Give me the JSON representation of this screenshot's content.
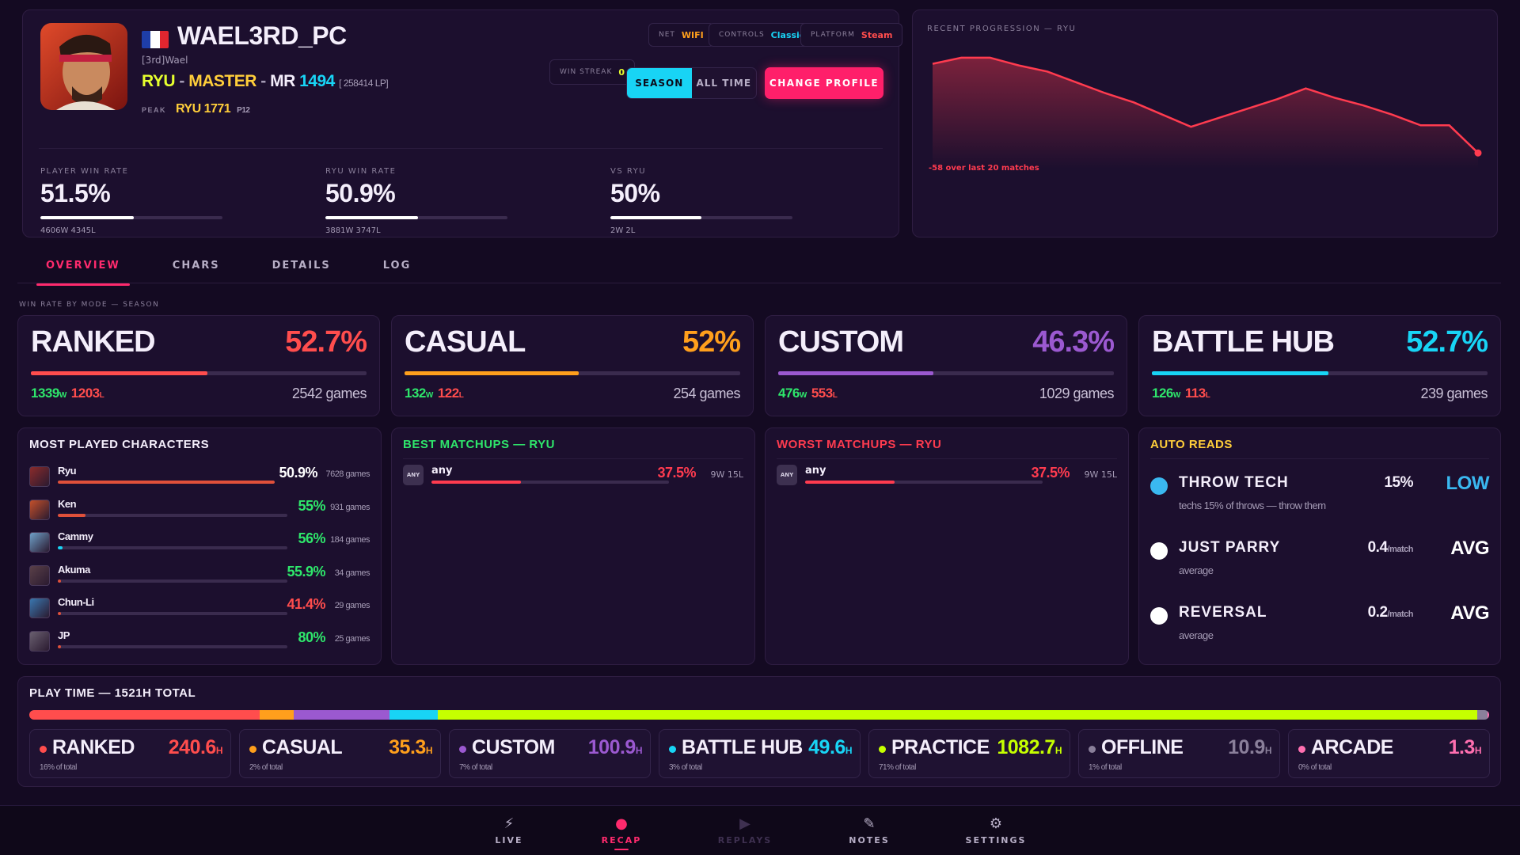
{
  "profile": {
    "name": "WAEL3RD_PC",
    "tag": "[3rd]Wael",
    "character": "RYU",
    "league": "MASTER",
    "mr_label": "MR",
    "mr": "1494",
    "lp": "[ 258414 LP]",
    "peak_label": "PEAK",
    "peak_value": "RYU 1771",
    "peak_sub": "P12"
  },
  "chips": {
    "net_label": "NET",
    "net_value": "WIFI",
    "controls_label": "CONTROLS",
    "controls_value": "Classic",
    "platform_label": "PLATFORM",
    "platform_value": "Steam",
    "streak_label": "WIN STREAK",
    "streak_value": "0"
  },
  "segment": {
    "season": "SEASON",
    "alltime": "ALL TIME"
  },
  "change_profile": "CHANGE PROFILE",
  "stats": [
    {
      "label": "PLAYER WIN RATE",
      "value": "51.5%",
      "fill": 0.515,
      "record": "4606W 4345L"
    },
    {
      "label": "RYU WIN RATE",
      "value": "50.9%",
      "fill": 0.509,
      "record": "3881W 3747L"
    },
    {
      "label": "VS RYU",
      "value": "50%",
      "fill": 0.5,
      "record": "2W 2L"
    }
  ],
  "progression": {
    "title": "RECENT PROGRESSION — Ryu",
    "delta": "-58 over last 20 matches"
  },
  "tabs": [
    "OVERVIEW",
    "CHARS",
    "DETAILS",
    "LOG"
  ],
  "modes_title": "WIN RATE BY MODE — SEASON",
  "modes": [
    {
      "name": "RANKED",
      "rate": "52.7%",
      "fill": 0.527,
      "wins": "1339",
      "losses": "1203",
      "games": "2542 games",
      "color": "#ff4d4d"
    },
    {
      "name": "CASUAL",
      "rate": "52%",
      "fill": 0.52,
      "wins": "132",
      "losses": "122",
      "games": "254 games",
      "color": "#ff9f1c"
    },
    {
      "name": "CUSTOM",
      "rate": "46.3%",
      "fill": 0.463,
      "wins": "476",
      "losses": "553",
      "games": "1029 games",
      "color": "#9b59d0"
    },
    {
      "name": "BATTLE HUB",
      "rate": "52.7%",
      "fill": 0.527,
      "wins": "126",
      "losses": "113",
      "games": "239 games",
      "color": "#18d4f5"
    }
  ],
  "w_suffix": "W",
  "l_suffix": "L",
  "most_played": {
    "title": "MOST PLAYED CHARACTERS",
    "rows": [
      {
        "name": "Ryu",
        "rate": "50.9%",
        "games": "7628 games",
        "fill": 1.0,
        "rate_color": "#ffffff",
        "bar": "#e0503a",
        "icon": "#8b2b2b"
      },
      {
        "name": "Ken",
        "rate": "55%",
        "games": "931 games",
        "fill": 0.12,
        "rate_color": "#2ee66b",
        "bar": "#e0503a",
        "icon": "#c4502a"
      },
      {
        "name": "Cammy",
        "rate": "56%",
        "games": "184 games",
        "fill": 0.02,
        "rate_color": "#2ee66b",
        "bar": "#18d4f5",
        "icon": "#6fa0c8"
      },
      {
        "name": "Akuma",
        "rate": "55.9%",
        "games": "34 games",
        "fill": 0.0,
        "rate_color": "#2ee66b",
        "bar": "#e0503a",
        "icon": "#5a4048"
      },
      {
        "name": "Chun-Li",
        "rate": "41.4%",
        "games": "29 games",
        "fill": 0.0,
        "rate_color": "#ff4d4d",
        "bar": "#e0503a",
        "icon": "#3a78b0"
      },
      {
        "name": "JP",
        "rate": "80%",
        "games": "25 games",
        "fill": 0.0,
        "rate_color": "#2ee66b",
        "bar": "#e0503a",
        "icon": "#6a6070"
      }
    ]
  },
  "best": {
    "title": "BEST MATCHUPS — RYU",
    "badge": "ANY",
    "name": "any",
    "rate": "37.5%",
    "fill": 0.375,
    "wl": "9W 15L"
  },
  "worst": {
    "title": "WORST MATCHUPS — RYU",
    "badge": "ANY",
    "name": "any",
    "rate": "37.5%",
    "fill": 0.375,
    "wl": "9W 15L"
  },
  "auto_reads": {
    "title": "AUTO READS",
    "items": [
      {
        "name": "THROW TECH",
        "value": "15%",
        "unit": "",
        "level": "LOW",
        "level_color": "#3ab8f0",
        "dot": "#3ab8f0",
        "desc": "techs 15% of throws — throw them"
      },
      {
        "name": "JUST PARRY",
        "value": "0.4",
        "unit": "/match",
        "level": "AVG",
        "level_color": "#ffffff",
        "dot": "#ffffff",
        "desc": "average"
      },
      {
        "name": "REVERSAL",
        "value": "0.2",
        "unit": "/match",
        "level": "AVG",
        "level_color": "#ffffff",
        "dot": "#ffffff",
        "desc": "average"
      }
    ]
  },
  "playtime": {
    "title": "PLAY TIME — 1521H TOTAL",
    "h": "H",
    "items": [
      {
        "name": "RANKED",
        "hours": "240.6",
        "pct": "16% of total",
        "share": 0.158,
        "color": "#ff4d4d"
      },
      {
        "name": "CASUAL",
        "hours": "35.3",
        "pct": "2% of total",
        "share": 0.023,
        "color": "#ff9f1c"
      },
      {
        "name": "CUSTOM",
        "hours": "100.9",
        "pct": "7% of total",
        "share": 0.066,
        "color": "#9b59d0"
      },
      {
        "name": "BATTLE HUB",
        "hours": "49.6",
        "pct": "3% of total",
        "share": 0.033,
        "color": "#18d4f5"
      },
      {
        "name": "PRACTICE",
        "hours": "1082.7",
        "pct": "71% of total",
        "share": 0.712,
        "color": "#c6ff00"
      },
      {
        "name": "OFFLINE",
        "hours": "10.9",
        "pct": "1% of total",
        "share": 0.007,
        "color": "#8a7f9a"
      },
      {
        "name": "ARCADE",
        "hours": "1.3",
        "pct": "0% of total",
        "share": 0.001,
        "color": "#ff6fb0"
      }
    ]
  },
  "nav": [
    {
      "label": "LIVE",
      "icon": "bolt-icon"
    },
    {
      "label": "RECAP",
      "icon": "user-icon"
    },
    {
      "label": "REPLAYS",
      "icon": "play-icon"
    },
    {
      "label": "NOTES",
      "icon": "pencil-icon"
    },
    {
      "label": "SETTINGS",
      "icon": "gear-icon"
    }
  ],
  "chart_data": {
    "type": "area",
    "title": "RECENT PROGRESSION — Ryu",
    "x": [
      1,
      2,
      3,
      4,
      5,
      6,
      7,
      8,
      9,
      10,
      11,
      12,
      13,
      14,
      15,
      16,
      17,
      18,
      19,
      20
    ],
    "y": [
      1552,
      1556,
      1556,
      1551,
      1547,
      1540,
      1533,
      1527,
      1519,
      1511,
      1517,
      1523,
      1529,
      1536,
      1530,
      1525,
      1519,
      1512,
      1512,
      1494
    ],
    "color": "#ff3b4f"
  }
}
